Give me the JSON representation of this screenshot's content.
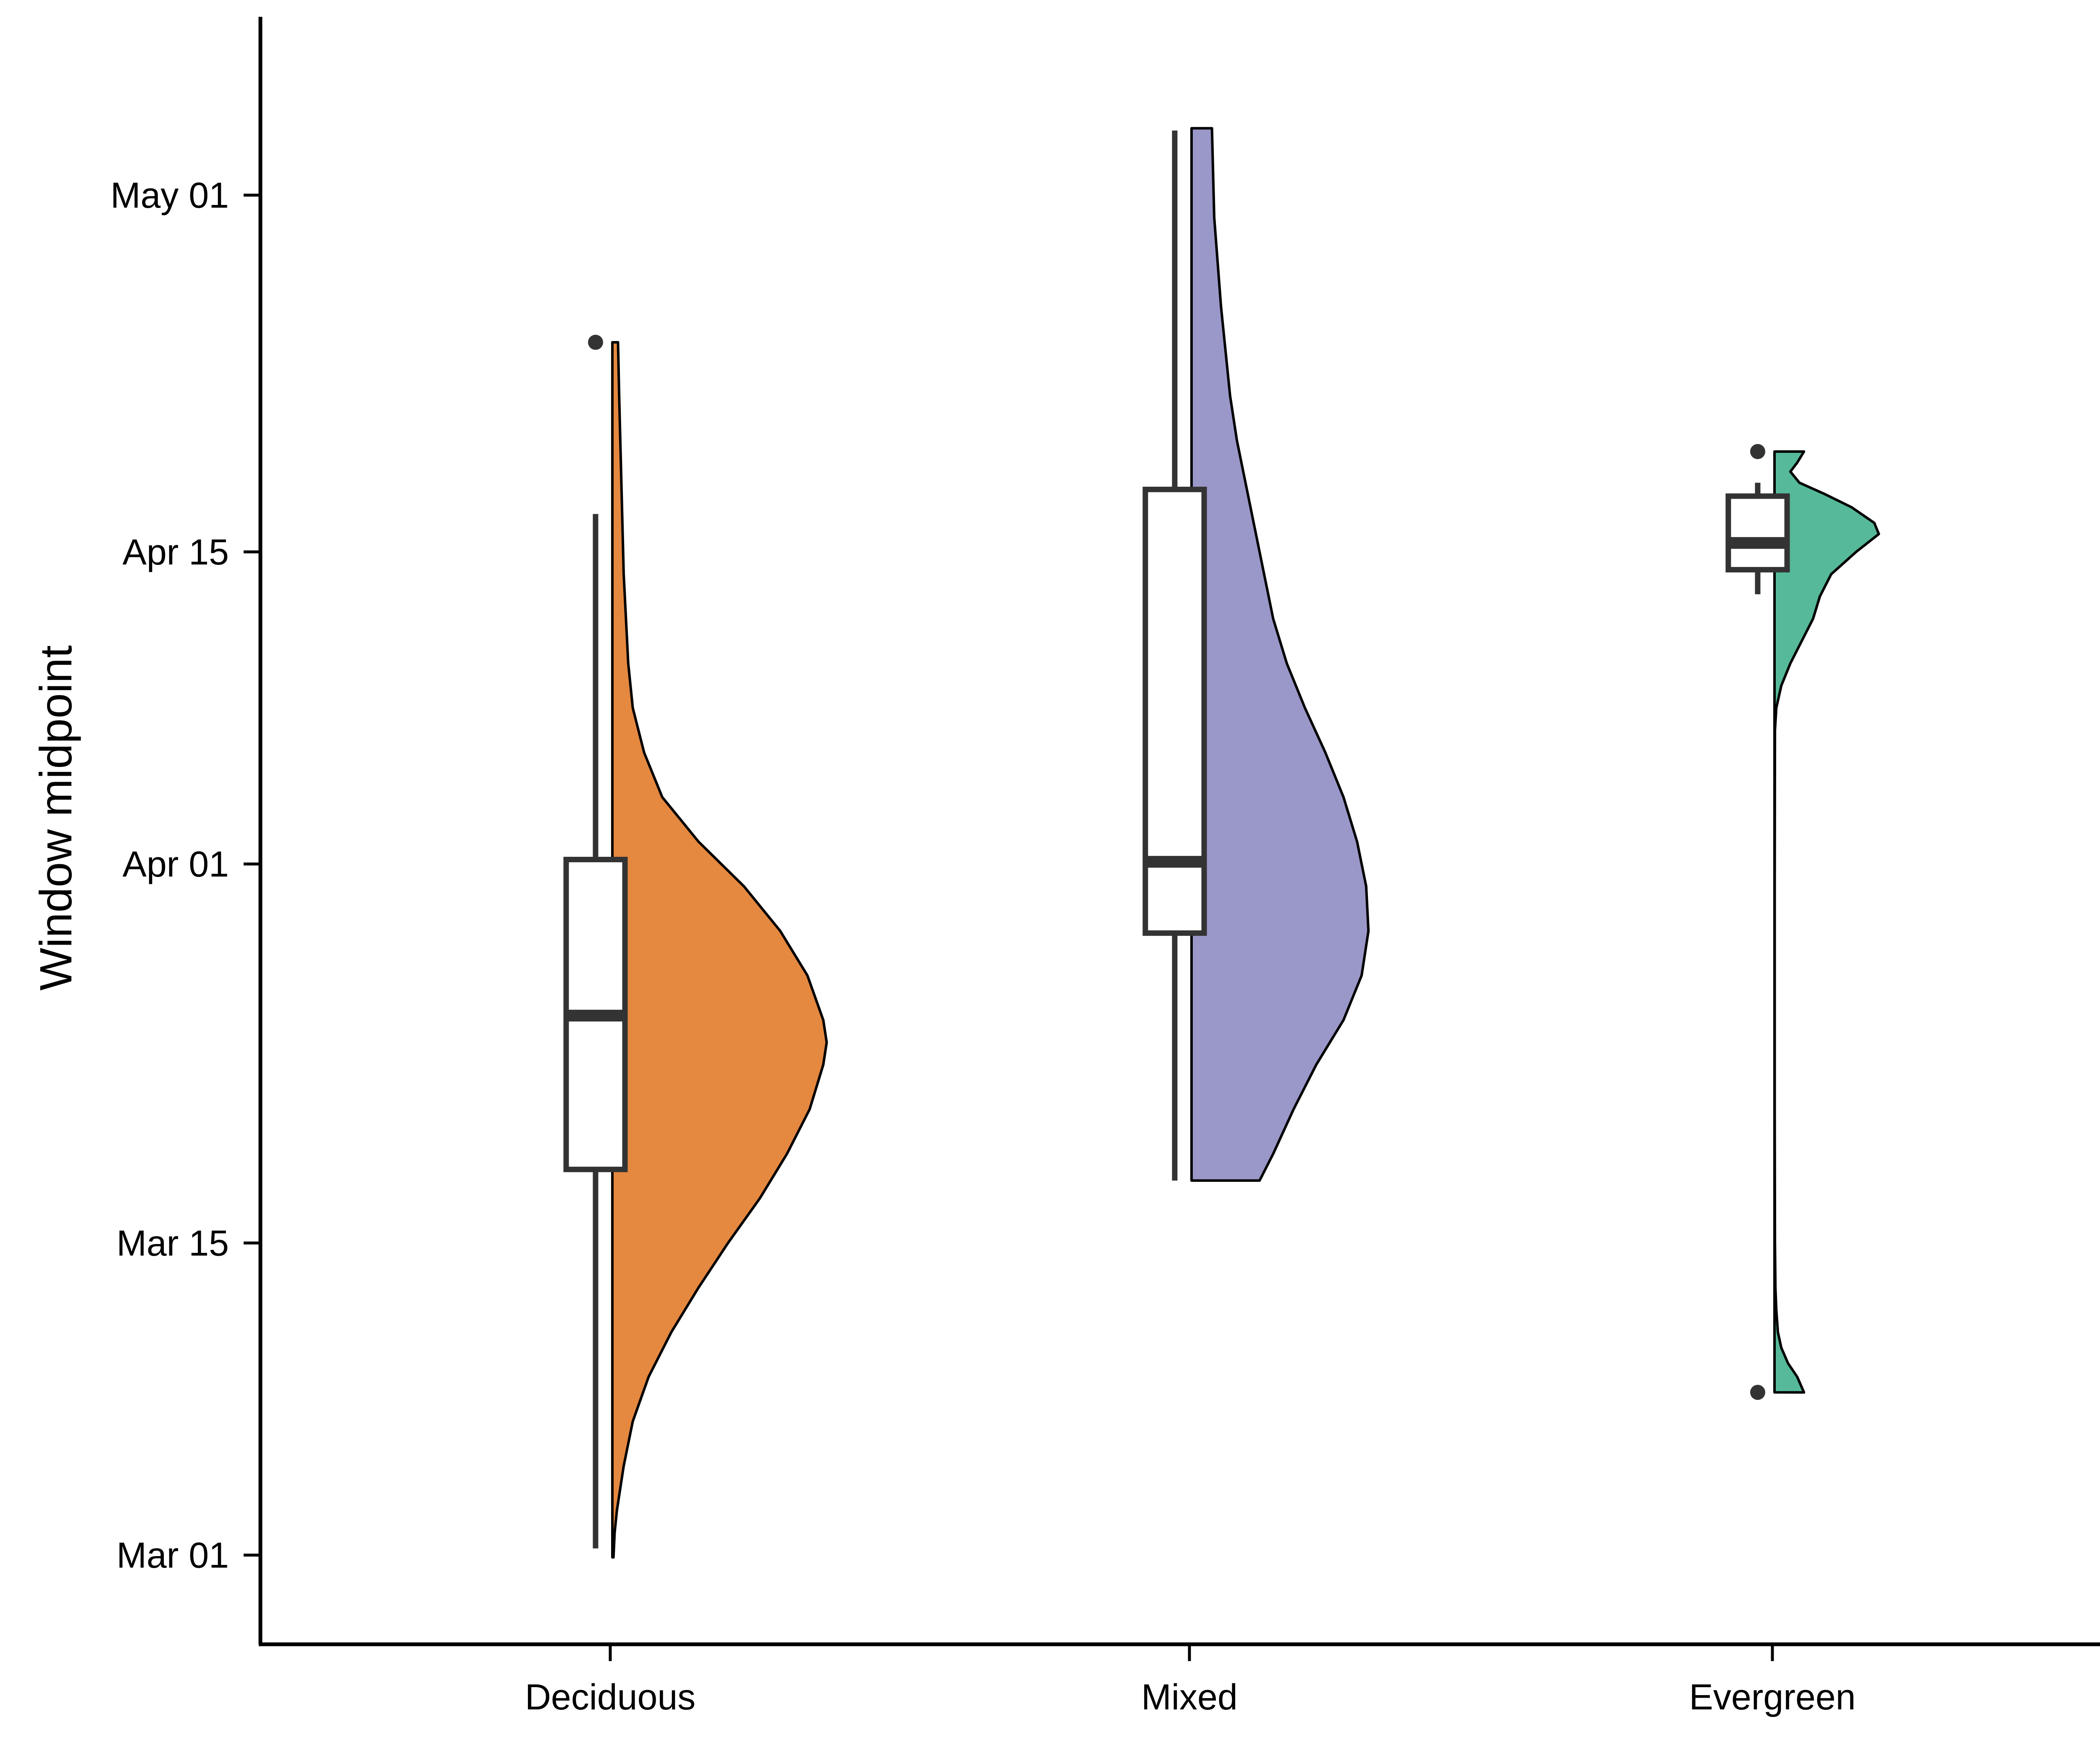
{
  "chart_data": {
    "type": "raincloud (half-violin + boxplot)",
    "ylabel": "Window midpoint",
    "xlabel": "",
    "y_axis": {
      "scale": "date",
      "ticks": [
        "Mar 01",
        "Mar 15",
        "Apr 01",
        "Apr 15",
        "May 01"
      ],
      "tick_days": [
        0,
        14,
        31,
        45,
        61
      ],
      "range_days": [
        -4,
        69
      ]
    },
    "grid": false,
    "legend": "none",
    "categories": [
      "Deciduous",
      "Mixed",
      "Evergreen"
    ],
    "series": [
      {
        "category": "Deciduous",
        "color": "#E58840",
        "box": {
          "lower_whisker": 0.3,
          "q1": 17.3,
          "median": 24.2,
          "q3": 31.2,
          "upper_whisker": 46.7
        },
        "outliers": [
          54.4
        ],
        "density_range": [
          -0.1,
          54.4
        ],
        "density": [
          [
            -0.1,
            0.005
          ],
          [
            1,
            0.01
          ],
          [
            2,
            0.02
          ],
          [
            4,
            0.05
          ],
          [
            6,
            0.09
          ],
          [
            8,
            0.16
          ],
          [
            10,
            0.26
          ],
          [
            12,
            0.38
          ],
          [
            14,
            0.51
          ],
          [
            16,
            0.65
          ],
          [
            18,
            0.77
          ],
          [
            20,
            0.87
          ],
          [
            22,
            0.93
          ],
          [
            23,
            0.945
          ],
          [
            24,
            0.93
          ],
          [
            26,
            0.86
          ],
          [
            28,
            0.74
          ],
          [
            30,
            0.58
          ],
          [
            32,
            0.38
          ],
          [
            34,
            0.22
          ],
          [
            36,
            0.14
          ],
          [
            38,
            0.09
          ],
          [
            40,
            0.07
          ],
          [
            42,
            0.06
          ],
          [
            44,
            0.05
          ],
          [
            46,
            0.045
          ],
          [
            48,
            0.04
          ],
          [
            50,
            0.035
          ],
          [
            52,
            0.03
          ],
          [
            54.4,
            0.025
          ]
        ]
      },
      {
        "category": "Mixed",
        "color": "#9A97C9",
        "box": {
          "lower_whisker": 16.8,
          "q1": 27.9,
          "median": 31.1,
          "q3": 47.8,
          "upper_whisker": 63.9
        },
        "outliers": [],
        "density_range": [
          16.8,
          64.0
        ],
        "density": [
          [
            16.8,
            0.3
          ],
          [
            18,
            0.36
          ],
          [
            20,
            0.45
          ],
          [
            22,
            0.55
          ],
          [
            24,
            0.67
          ],
          [
            26,
            0.75
          ],
          [
            28,
            0.78
          ],
          [
            30,
            0.77
          ],
          [
            32,
            0.73
          ],
          [
            34,
            0.67
          ],
          [
            36,
            0.59
          ],
          [
            38,
            0.5
          ],
          [
            40,
            0.42
          ],
          [
            42,
            0.36
          ],
          [
            44,
            0.32
          ],
          [
            46,
            0.28
          ],
          [
            48,
            0.24
          ],
          [
            50,
            0.2
          ],
          [
            52,
            0.17
          ],
          [
            54,
            0.15
          ],
          [
            56,
            0.13
          ],
          [
            58,
            0.115
          ],
          [
            60,
            0.1
          ],
          [
            62,
            0.095
          ],
          [
            64.0,
            0.09
          ]
        ]
      },
      {
        "category": "Evergreen",
        "color": "#55B99A",
        "box": {
          "lower_whisker": 43.1,
          "q1": 44.2,
          "median": 45.4,
          "q3": 47.5,
          "upper_whisker": 48.1
        },
        "outliers": [
          49.5,
          7.3
        ],
        "density_range": [
          7.3,
          49.5
        ],
        "density": [
          [
            7.3,
            0.13
          ],
          [
            8,
            0.1
          ],
          [
            8.6,
            0.06
          ],
          [
            9.3,
            0.03
          ],
          [
            10,
            0.015
          ],
          [
            11,
            0.008
          ],
          [
            12,
            0.004
          ],
          [
            14,
            0.002
          ],
          [
            20,
            0.001
          ],
          [
            30,
            0.001
          ],
          [
            37,
            0.002
          ],
          [
            38,
            0.008
          ],
          [
            39,
            0.03
          ],
          [
            40,
            0.07
          ],
          [
            41,
            0.12
          ],
          [
            42,
            0.17
          ],
          [
            43,
            0.2
          ],
          [
            44,
            0.25
          ],
          [
            45,
            0.36
          ],
          [
            45.8,
            0.46
          ],
          [
            46.3,
            0.44
          ],
          [
            47,
            0.34
          ],
          [
            47.6,
            0.22
          ],
          [
            48.1,
            0.11
          ],
          [
            48.6,
            0.07
          ],
          [
            49.0,
            0.1
          ],
          [
            49.5,
            0.13
          ]
        ]
      }
    ]
  }
}
